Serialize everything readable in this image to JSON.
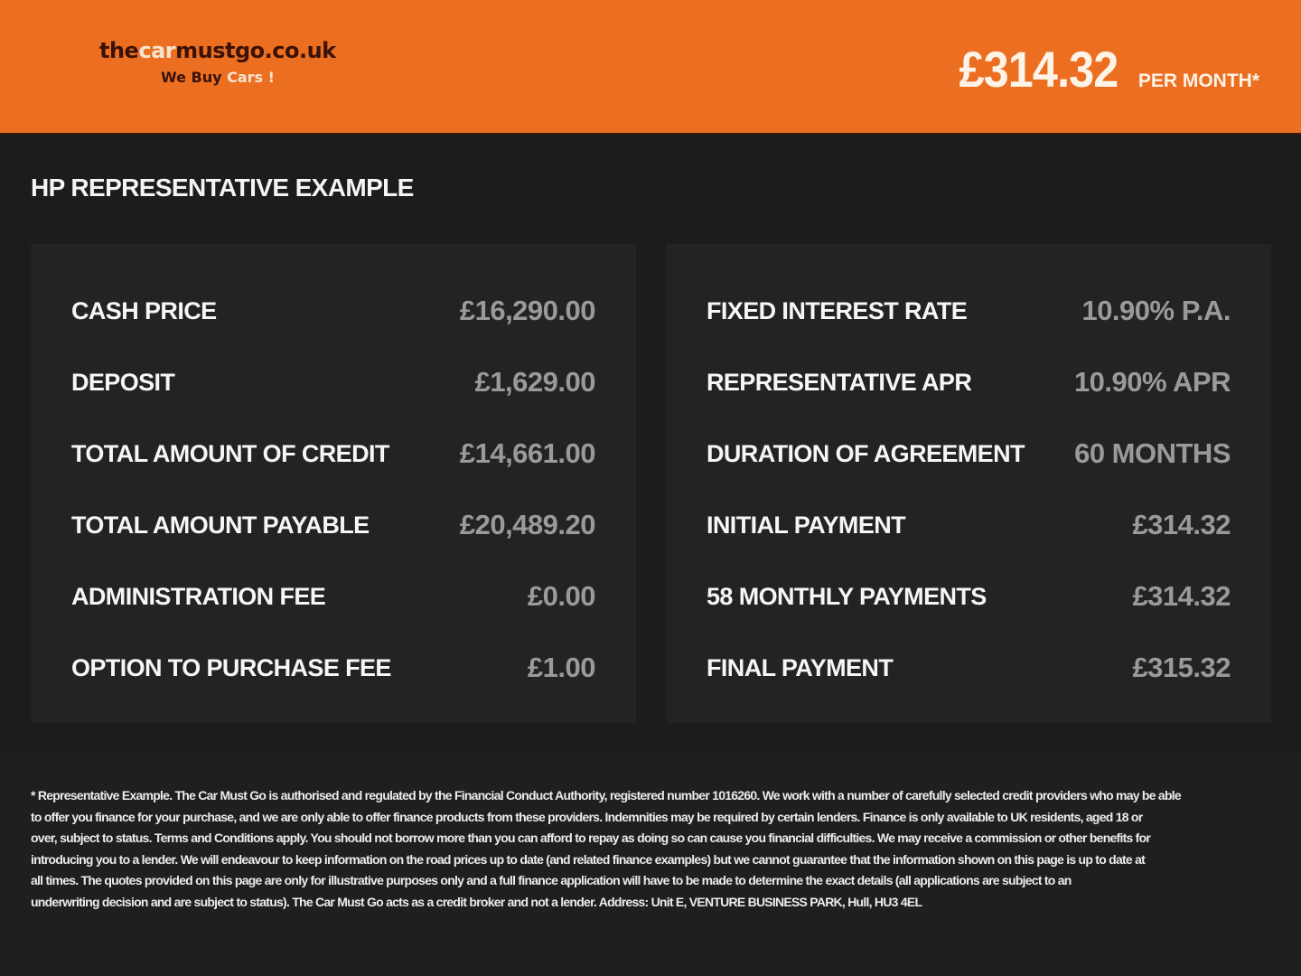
{
  "header": {
    "logo": {
      "the": "the",
      "car": "car",
      "mustgo": "mustgo",
      "domain": ".co.uk",
      "tag_we_buy": "We Buy",
      "tag_cars": "Cars !"
    },
    "price": "£314.32",
    "per_month": "PER MONTH*",
    "colors": {
      "brand_orange": "#ec6f21",
      "background": "#1c1c1c",
      "panel": "#232323"
    }
  },
  "title": "HP REPRESENTATIVE EXAMPLE",
  "left_panel": [
    {
      "label": "CASH PRICE",
      "value": "£16,290.00"
    },
    {
      "label": "DEPOSIT",
      "value": "£1,629.00"
    },
    {
      "label": "TOTAL AMOUNT OF CREDIT",
      "value": "£14,661.00"
    },
    {
      "label": "TOTAL AMOUNT PAYABLE",
      "value": "£20,489.20"
    },
    {
      "label": "ADMINISTRATION FEE",
      "value": "£0.00"
    },
    {
      "label": "OPTION TO PURCHASE FEE",
      "value": "£1.00"
    }
  ],
  "right_panel": [
    {
      "label": "FIXED INTEREST RATE",
      "value": "10.90% P.A."
    },
    {
      "label": "REPRESENTATIVE APR",
      "value": "10.90% APR"
    },
    {
      "label": "DURATION OF AGREEMENT",
      "value": "60 MONTHS"
    },
    {
      "label": "INITIAL PAYMENT",
      "value": "£314.32"
    },
    {
      "label": "58 MONTHLY PAYMENTS",
      "value": "£314.32"
    },
    {
      "label": "FINAL PAYMENT",
      "value": "£315.32"
    }
  ],
  "disclaimer_lines": [
    "* Representative Example. The Car Must Go is authorised and regulated by the Financial Conduct Authority, registered number 1016260. We work with a number of carefully selected credit providers who may be able",
    "to offer you finance for your purchase, and we are only able to offer finance products from these providers. Indemnities may be required by certain lenders. Finance is only available to UK residents, aged 18 or",
    "over, subject to status. Terms and Conditions apply. You should not borrow more than you can afford to repay as doing so can cause you financial difficulties. We may receive a commission or other benefits for",
    "introducing you to a lender. We will endeavour to keep information on the road prices up to date (and related finance examples) but we cannot guarantee that the information shown on this page is up to date at",
    "all times. The quotes provided on this page are only for illustrative purposes only and a full finance application will have to be made to determine the exact details (all applications are subject to an",
    "underwriting decision and are subject to status). The Car Must Go acts as a credit broker and not a lender. Address: Unit E, VENTURE BUSINESS PARK, Hull, HU3 4EL"
  ]
}
